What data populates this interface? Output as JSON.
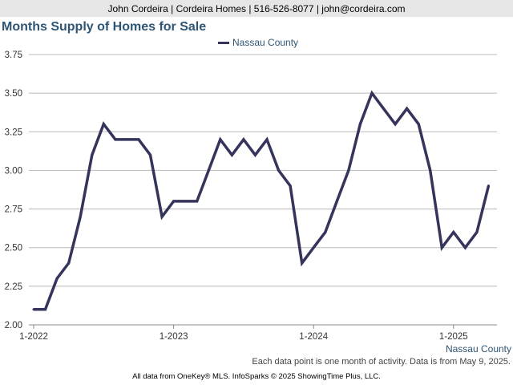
{
  "header": {
    "contact": "John Cordeira | Cordeira Homes | 516-526-8077 | john@cordeira.com"
  },
  "colors": {
    "series": "#35345c",
    "title": "#2e5574",
    "grid": "#b8b8b8"
  },
  "chart_data": {
    "type": "line",
    "title": "Months Supply of Homes for Sale",
    "xlabel": "",
    "ylabel": "",
    "x_ticks": [
      "1-2022",
      "1-2023",
      "1-2024",
      "1-2025"
    ],
    "y_ticks": [
      "2.00",
      "2.25",
      "2.50",
      "2.75",
      "3.00",
      "3.25",
      "3.50",
      "3.75"
    ],
    "ylim": [
      2.0,
      3.75
    ],
    "grid": true,
    "legend_position": "top-center",
    "x": [
      "2022-01",
      "2022-02",
      "2022-03",
      "2022-04",
      "2022-05",
      "2022-06",
      "2022-07",
      "2022-08",
      "2022-09",
      "2022-10",
      "2022-11",
      "2022-12",
      "2023-01",
      "2023-02",
      "2023-03",
      "2023-04",
      "2023-05",
      "2023-06",
      "2023-07",
      "2023-08",
      "2023-09",
      "2023-10",
      "2023-11",
      "2023-12",
      "2024-01",
      "2024-02",
      "2024-03",
      "2024-04",
      "2024-05",
      "2024-06",
      "2024-07",
      "2024-08",
      "2024-09",
      "2024-10",
      "2024-11",
      "2024-12",
      "2025-01",
      "2025-02",
      "2025-03",
      "2025-04"
    ],
    "series": [
      {
        "name": "Nassau County",
        "values": [
          2.1,
          2.1,
          2.3,
          2.4,
          2.7,
          3.1,
          3.3,
          3.2,
          3.2,
          3.2,
          3.1,
          2.7,
          2.8,
          2.8,
          2.8,
          3.0,
          3.2,
          3.1,
          3.2,
          3.1,
          3.2,
          3.0,
          2.9,
          2.4,
          2.5,
          2.6,
          2.8,
          3.0,
          3.3,
          3.5,
          3.4,
          3.3,
          3.4,
          3.3,
          3.0,
          2.5,
          2.6,
          2.5,
          2.6,
          2.9
        ]
      }
    ]
  },
  "region_label": "Nassau County",
  "footnote": "Each data point is one month of activity. Data is from May 9, 2025.",
  "source": "All data from OneKey® MLS. InfoSparks © 2025 ShowingTime Plus, LLC."
}
